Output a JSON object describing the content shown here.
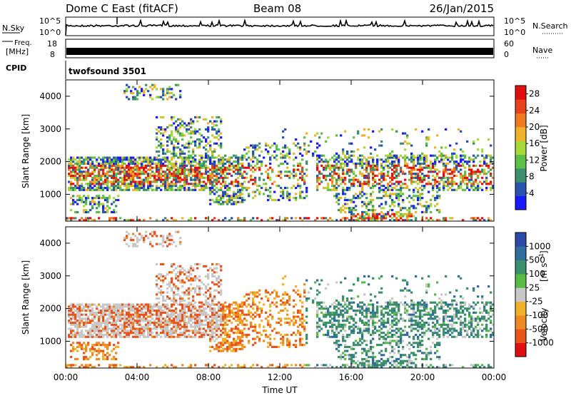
{
  "header": {
    "station": "Dome C East (fitACF)",
    "beam": "Beam 08",
    "date": "26/Jan/2015"
  },
  "strip_labels": {
    "nsky": "N.Sky",
    "nsearch": "N.Search",
    "freq_line1": "Freq.",
    "freq_line2": "[MHz]",
    "nave": "Nave",
    "cpid": "CPID",
    "cpid_value": "twofsound 3501",
    "noise_tick_top": "10^5",
    "noise_tick_bottom": "10^0",
    "freq_tick_top": "18",
    "freq_tick_bottom": "8",
    "nave_tick_top": "60",
    "nave_tick_bottom": "0"
  },
  "colors": {
    "power": [
      "#1a1aff",
      "#2a53b0",
      "#3d8f6e",
      "#5bbf48",
      "#a8d83a",
      "#f0b22a",
      "#f07a20",
      "#e8421a",
      "#e01010"
    ],
    "velocity": [
      "#2b4aaa",
      "#2f6e9c",
      "#3c8f6c",
      "#58bb46",
      "#c8c8c8",
      "#f0b22a",
      "#ee8a22",
      "#e8541a",
      "#e01010"
    ]
  },
  "chart_data": [
    {
      "type": "heatmap",
      "ylabel": "Slant Range [km]",
      "xlabel": "Time UT",
      "x_ticks": [
        "00:00",
        "04:00",
        "08:00",
        "12:00",
        "16:00",
        "20:00",
        "00:00"
      ],
      "x_range_hours": [
        0,
        24
      ],
      "y_ticks": [
        1000,
        2000,
        3000,
        4000
      ],
      "y_range_km": [
        180,
        4500
      ],
      "colorbar": {
        "label": "Power [dB]",
        "ticks": [
          4,
          8,
          12,
          16,
          20,
          24,
          28
        ],
        "range": [
          0,
          30
        ]
      }
    },
    {
      "type": "heatmap",
      "ylabel": "Slant Range [km]",
      "xlabel": "Time UT",
      "x_ticks": [
        "00:00",
        "04:00",
        "08:00",
        "12:00",
        "16:00",
        "20:00",
        "00:00"
      ],
      "x_range_hours": [
        0,
        24
      ],
      "y_ticks": [
        1000,
        2000,
        3000,
        4000
      ],
      "y_range_km": [
        180,
        4500
      ],
      "colorbar": {
        "label": "Velocity",
        "unit": "[m s",
        "unit_exp": "-1",
        "ticks": [
          "1000",
          "500",
          "100",
          "25",
          "-25",
          "-100",
          "-500",
          "-1000"
        ]
      }
    }
  ]
}
